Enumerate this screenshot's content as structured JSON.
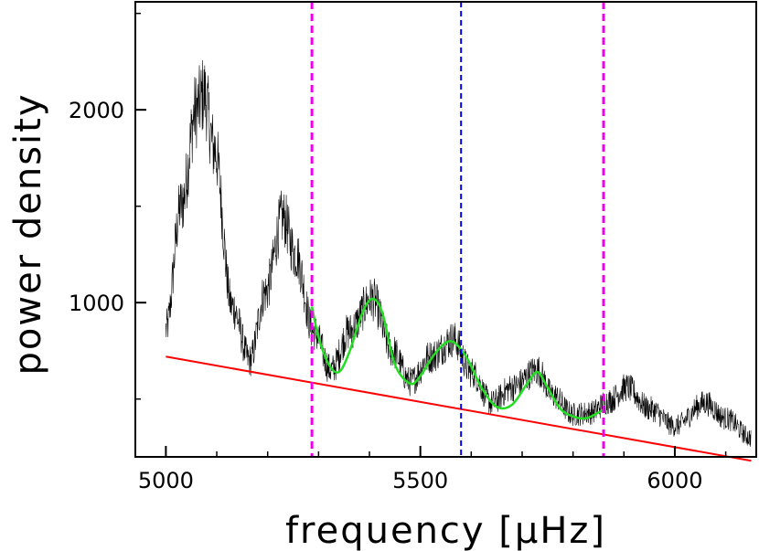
{
  "chart_data": {
    "type": "line",
    "xlabel": "frequency [μHz]",
    "ylabel": "power density",
    "xlim": [
      4940,
      6160
    ],
    "ylim": [
      200,
      2560
    ],
    "x_ticks": [
      5000,
      5500,
      6000
    ],
    "y_ticks": [
      1000,
      2000
    ],
    "grid": false,
    "colors": {
      "spectrum": "#000000",
      "smoothed": "#22dd22",
      "background_fit": "#ff0000",
      "window_lines": "#ee00ee",
      "center_line": "#0000ee"
    },
    "series": [
      {
        "values_profile": [
          [
            5000,
            860
          ],
          [
            5030,
            1500
          ],
          [
            5060,
            2000
          ],
          [
            5075,
            2080
          ],
          [
            5095,
            1800
          ],
          [
            5130,
            980
          ],
          [
            5165,
            700
          ],
          [
            5195,
            1050
          ],
          [
            5230,
            1440
          ],
          [
            5255,
            1250
          ],
          [
            5290,
            850
          ],
          [
            5325,
            650
          ],
          [
            5360,
            850
          ],
          [
            5405,
            1020
          ],
          [
            5445,
            750
          ],
          [
            5480,
            590
          ],
          [
            5520,
            720
          ],
          [
            5565,
            810
          ],
          [
            5600,
            640
          ],
          [
            5640,
            480
          ],
          [
            5680,
            560
          ],
          [
            5730,
            650
          ],
          [
            5760,
            520
          ],
          [
            5800,
            420
          ],
          [
            5835,
            430
          ],
          [
            5870,
            490
          ],
          [
            5905,
            560
          ],
          [
            5950,
            450
          ],
          [
            6000,
            360
          ],
          [
            6060,
            480
          ],
          [
            6100,
            400
          ],
          [
            6150,
            300
          ]
        ]
      },
      {
        "values": [
          [
            5287,
            980
          ],
          [
            5300,
            820
          ],
          [
            5320,
            680
          ],
          [
            5340,
            640
          ],
          [
            5360,
            740
          ],
          [
            5385,
            940
          ],
          [
            5405,
            1020
          ],
          [
            5425,
            950
          ],
          [
            5450,
            680
          ],
          [
            5480,
            580
          ],
          [
            5500,
            620
          ],
          [
            5530,
            740
          ],
          [
            5560,
            800
          ],
          [
            5590,
            720
          ],
          [
            5620,
            560
          ],
          [
            5650,
            460
          ],
          [
            5680,
            470
          ],
          [
            5710,
            580
          ],
          [
            5730,
            640
          ],
          [
            5750,
            560
          ],
          [
            5775,
            450
          ],
          [
            5800,
            410
          ],
          [
            5825,
            400
          ],
          [
            5850,
            430
          ],
          [
            5860,
            445
          ]
        ]
      },
      {
        "values": [
          [
            5000,
            720
          ],
          [
            6150,
            180
          ]
        ]
      }
    ],
    "vertical_lines": [
      {
        "x": 5287,
        "style": "window"
      },
      {
        "x": 5580,
        "style": "center"
      },
      {
        "x": 5860,
        "style": "window"
      }
    ]
  }
}
